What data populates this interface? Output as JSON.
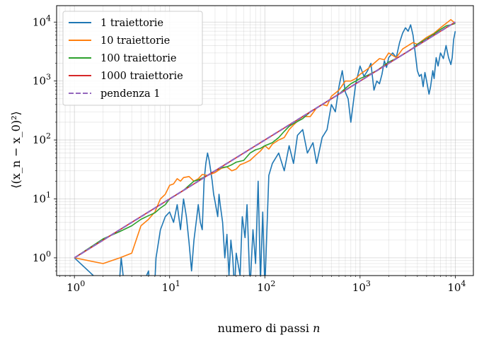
{
  "chart_data": {
    "type": "line",
    "title": "",
    "xlabel": "numero di passi",
    "xlabel_var": "n",
    "ylabel": "⟨(x_n − x_0)²⟩",
    "xscale": "log",
    "yscale": "log",
    "xlim": [
      0.65,
      15500
    ],
    "ylim": [
      0.5,
      19000
    ],
    "grid": "both-major-minor",
    "legend_position": "top-left",
    "x_ticks": [
      {
        "base": "10",
        "exp": "0"
      },
      {
        "base": "10",
        "exp": "1"
      },
      {
        "base": "10",
        "exp": "2"
      },
      {
        "base": "10",
        "exp": "3"
      },
      {
        "base": "10",
        "exp": "4"
      }
    ],
    "y_ticks": [
      {
        "base": "10",
        "exp": "0"
      },
      {
        "base": "10",
        "exp": "1"
      },
      {
        "base": "10",
        "exp": "2"
      },
      {
        "base": "10",
        "exp": "3"
      },
      {
        "base": "10",
        "exp": "4"
      }
    ],
    "series": [
      {
        "name": "1 traiettorie",
        "color": "#1f77b4",
        "style": "solid",
        "points": [
          [
            1,
            1
          ],
          [
            2,
            0.35
          ],
          [
            3,
            0.5
          ],
          [
            3.1,
            1
          ],
          [
            3.3,
            0.4
          ],
          [
            5,
            0.3
          ],
          [
            6,
            0.6
          ],
          [
            6.2,
            0.3
          ],
          [
            7,
            0.4
          ],
          [
            7.2,
            1.0
          ],
          [
            8,
            3
          ],
          [
            9,
            5
          ],
          [
            10,
            6
          ],
          [
            11,
            4
          ],
          [
            12,
            8
          ],
          [
            13,
            3
          ],
          [
            14,
            10
          ],
          [
            15,
            5
          ],
          [
            16,
            1.8
          ],
          [
            17,
            0.6
          ],
          [
            18,
            2
          ],
          [
            19,
            4
          ],
          [
            20,
            8
          ],
          [
            21,
            4
          ],
          [
            22,
            3
          ],
          [
            23,
            20
          ],
          [
            24,
            40
          ],
          [
            25,
            60
          ],
          [
            26,
            45
          ],
          [
            27,
            30
          ],
          [
            28,
            20
          ],
          [
            29,
            12
          ],
          [
            30,
            9
          ],
          [
            32,
            5
          ],
          [
            33,
            12
          ],
          [
            34,
            8
          ],
          [
            36,
            4
          ],
          [
            38,
            1
          ],
          [
            40,
            2.5
          ],
          [
            42,
            0.5
          ],
          [
            44,
            2
          ],
          [
            46,
            1
          ],
          [
            48,
            0.3
          ],
          [
            50,
            1.2
          ],
          [
            55,
            0.5
          ],
          [
            58,
            5
          ],
          [
            62,
            2.2
          ],
          [
            65,
            8
          ],
          [
            70,
            0.3
          ],
          [
            75,
            3
          ],
          [
            80,
            0.8
          ],
          [
            85,
            20
          ],
          [
            90,
            0.4
          ],
          [
            95,
            6
          ],
          [
            100,
            0.3
          ],
          [
            110,
            25
          ],
          [
            120,
            40
          ],
          [
            140,
            60
          ],
          [
            160,
            30
          ],
          [
            180,
            80
          ],
          [
            200,
            40
          ],
          [
            220,
            120
          ],
          [
            250,
            150
          ],
          [
            280,
            60
          ],
          [
            320,
            90
          ],
          [
            350,
            40
          ],
          [
            400,
            110
          ],
          [
            450,
            150
          ],
          [
            500,
            400
          ],
          [
            550,
            300
          ],
          [
            600,
            800
          ],
          [
            650,
            1500
          ],
          [
            700,
            650
          ],
          [
            750,
            500
          ],
          [
            800,
            200
          ],
          [
            900,
            900
          ],
          [
            1000,
            1800
          ],
          [
            1100,
            1200
          ],
          [
            1200,
            1500
          ],
          [
            1300,
            2000
          ],
          [
            1400,
            700
          ],
          [
            1500,
            1000
          ],
          [
            1600,
            900
          ],
          [
            1700,
            1300
          ],
          [
            1800,
            2200
          ],
          [
            1900,
            1700
          ],
          [
            2000,
            2500
          ],
          [
            2200,
            3000
          ],
          [
            2400,
            2500
          ],
          [
            2600,
            4500
          ],
          [
            2800,
            6500
          ],
          [
            3000,
            8000
          ],
          [
            3200,
            7000
          ],
          [
            3400,
            9000
          ],
          [
            3600,
            6000
          ],
          [
            3800,
            3000
          ],
          [
            4000,
            1500
          ],
          [
            4200,
            1200
          ],
          [
            4400,
            1300
          ],
          [
            4600,
            800
          ],
          [
            4800,
            1400
          ],
          [
            5000,
            1000
          ],
          [
            5300,
            600
          ],
          [
            5500,
            800
          ],
          [
            5800,
            1500
          ],
          [
            6000,
            1100
          ],
          [
            6300,
            2500
          ],
          [
            6600,
            1800
          ],
          [
            7000,
            3000
          ],
          [
            7500,
            2400
          ],
          [
            8000,
            4000
          ],
          [
            8500,
            2500
          ],
          [
            9000,
            1900
          ],
          [
            9300,
            2500
          ],
          [
            9600,
            5000
          ],
          [
            10000,
            7000
          ]
        ]
      },
      {
        "name": "10 traiettorie",
        "color": "#ff7f0e",
        "style": "solid",
        "points": [
          [
            1,
            1
          ],
          [
            2,
            0.8
          ],
          [
            3,
            1.0
          ],
          [
            4,
            1.2
          ],
          [
            5,
            3.5
          ],
          [
            6,
            4.5
          ],
          [
            7,
            6
          ],
          [
            8,
            10
          ],
          [
            9,
            12
          ],
          [
            10,
            17
          ],
          [
            11,
            18
          ],
          [
            12,
            22
          ],
          [
            13,
            20
          ],
          [
            14,
            23
          ],
          [
            16,
            24
          ],
          [
            18,
            20
          ],
          [
            20,
            22
          ],
          [
            22,
            26
          ],
          [
            25,
            25
          ],
          [
            30,
            28
          ],
          [
            35,
            33
          ],
          [
            40,
            35
          ],
          [
            45,
            30
          ],
          [
            50,
            32
          ],
          [
            55,
            38
          ],
          [
            60,
            40
          ],
          [
            70,
            45
          ],
          [
            80,
            55
          ],
          [
            90,
            65
          ],
          [
            100,
            80
          ],
          [
            110,
            70
          ],
          [
            120,
            85
          ],
          [
            140,
            100
          ],
          [
            160,
            110
          ],
          [
            180,
            150
          ],
          [
            200,
            180
          ],
          [
            250,
            250
          ],
          [
            300,
            250
          ],
          [
            350,
            350
          ],
          [
            400,
            400
          ],
          [
            450,
            380
          ],
          [
            500,
            550
          ],
          [
            600,
            700
          ],
          [
            700,
            1000
          ],
          [
            800,
            1000
          ],
          [
            900,
            1100
          ],
          [
            1000,
            1300
          ],
          [
            1200,
            1600
          ],
          [
            1400,
            2000
          ],
          [
            1600,
            2400
          ],
          [
            1800,
            2300
          ],
          [
            2000,
            3000
          ],
          [
            2400,
            2500
          ],
          [
            2800,
            3500
          ],
          [
            3200,
            4000
          ],
          [
            3600,
            4500
          ],
          [
            4000,
            4200
          ],
          [
            5000,
            5500
          ],
          [
            6000,
            6500
          ],
          [
            7000,
            8000
          ],
          [
            8000,
            9500
          ],
          [
            9000,
            11000
          ],
          [
            10000,
            9500
          ]
        ]
      },
      {
        "name": "100 traiettorie",
        "color": "#2ca02c",
        "style": "solid",
        "points": [
          [
            1,
            1
          ],
          [
            2,
            2.1
          ],
          [
            3,
            2.8
          ],
          [
            4,
            3.5
          ],
          [
            5,
            4.5
          ],
          [
            6,
            5.2
          ],
          [
            7,
            5.8
          ],
          [
            8,
            7
          ],
          [
            9,
            8
          ],
          [
            10,
            10
          ],
          [
            12,
            12
          ],
          [
            14,
            14
          ],
          [
            16,
            17
          ],
          [
            18,
            20
          ],
          [
            20,
            21
          ],
          [
            25,
            25
          ],
          [
            30,
            30
          ],
          [
            35,
            34
          ],
          [
            40,
            35
          ],
          [
            45,
            38
          ],
          [
            50,
            42
          ],
          [
            60,
            45
          ],
          [
            70,
            60
          ],
          [
            80,
            68
          ],
          [
            90,
            72
          ],
          [
            100,
            80
          ],
          [
            120,
            90
          ],
          [
            140,
            110
          ],
          [
            160,
            140
          ],
          [
            180,
            170
          ],
          [
            200,
            190
          ],
          [
            250,
            230
          ],
          [
            300,
            300
          ],
          [
            400,
            400
          ],
          [
            500,
            500
          ],
          [
            600,
            600
          ],
          [
            700,
            750
          ],
          [
            800,
            900
          ],
          [
            900,
            1000
          ],
          [
            1000,
            1100
          ],
          [
            1200,
            1250
          ],
          [
            1500,
            1500
          ],
          [
            2000,
            2100
          ],
          [
            2500,
            2500
          ],
          [
            3000,
            3000
          ],
          [
            3500,
            3500
          ],
          [
            4000,
            4200
          ],
          [
            5000,
            5200
          ],
          [
            6000,
            6300
          ],
          [
            7000,
            7500
          ],
          [
            8000,
            8600
          ],
          [
            9000,
            9000
          ],
          [
            10000,
            9500
          ]
        ]
      },
      {
        "name": "1000 traiettorie",
        "color": "#d62728",
        "style": "solid",
        "points": [
          [
            1,
            1
          ],
          [
            2,
            2
          ],
          [
            3,
            3
          ],
          [
            5,
            5
          ],
          [
            10,
            10
          ],
          [
            20,
            20
          ],
          [
            30,
            30
          ],
          [
            50,
            50
          ],
          [
            70,
            70
          ],
          [
            100,
            100
          ],
          [
            150,
            150
          ],
          [
            200,
            200
          ],
          [
            300,
            300
          ],
          [
            500,
            500
          ],
          [
            700,
            700
          ],
          [
            1000,
            1000
          ],
          [
            1500,
            1500
          ],
          [
            2000,
            2000
          ],
          [
            3000,
            3000
          ],
          [
            5000,
            5000
          ],
          [
            7000,
            7000
          ],
          [
            10000,
            10000
          ]
        ]
      },
      {
        "name": "pendenza 1",
        "color": "#9467bd",
        "style": "dashed",
        "points": [
          [
            1,
            1
          ],
          [
            10000,
            10000
          ]
        ]
      }
    ]
  }
}
